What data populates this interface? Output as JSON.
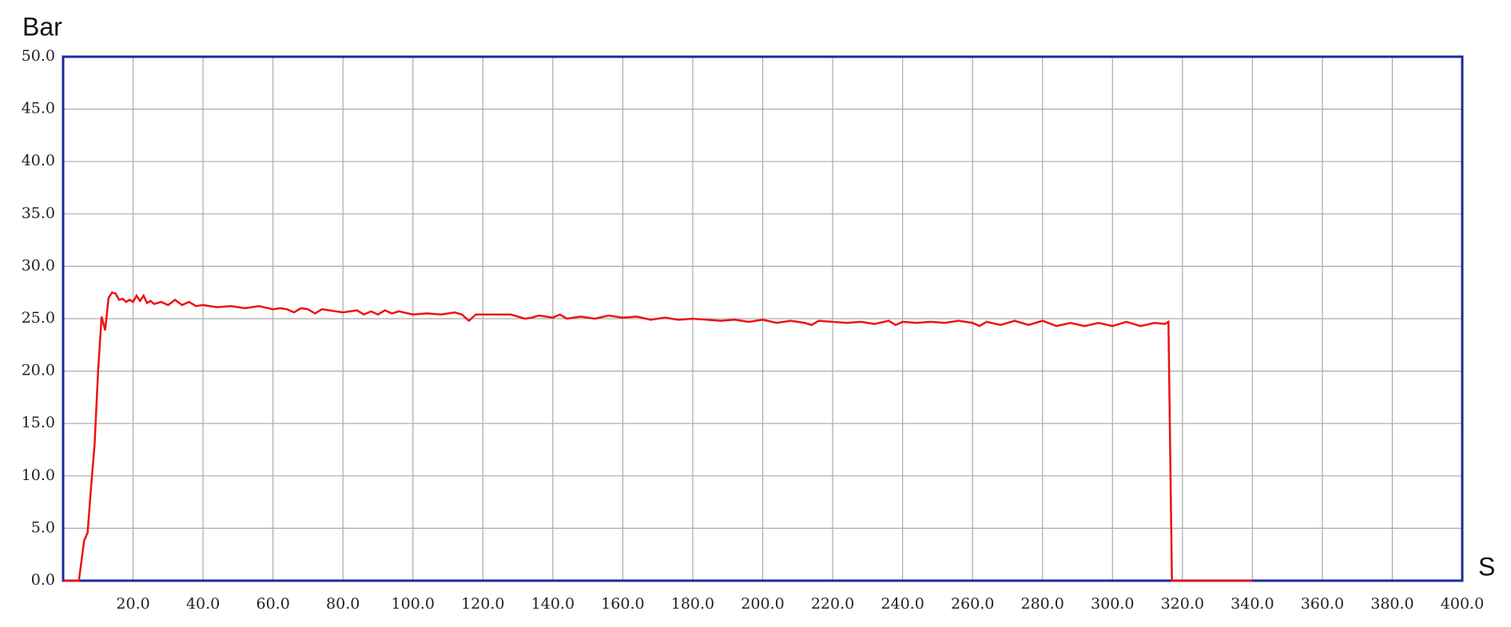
{
  "chart_data": {
    "type": "line",
    "y_axis_label": "Bar",
    "x_axis_label": "S",
    "xlim": [
      0,
      400
    ],
    "ylim": [
      0,
      50
    ],
    "grid": true,
    "xticks": [
      {
        "value": 20,
        "label": "20.0"
      },
      {
        "value": 40,
        "label": "40.0"
      },
      {
        "value": 60,
        "label": "60.0"
      },
      {
        "value": 80,
        "label": "80.0"
      },
      {
        "value": 100,
        "label": "100.0"
      },
      {
        "value": 120,
        "label": "120.0"
      },
      {
        "value": 140,
        "label": "140.0"
      },
      {
        "value": 160,
        "label": "160.0"
      },
      {
        "value": 180,
        "label": "180.0"
      },
      {
        "value": 200,
        "label": "200.0"
      },
      {
        "value": 220,
        "label": "220.0"
      },
      {
        "value": 240,
        "label": "240.0"
      },
      {
        "value": 260,
        "label": "260.0"
      },
      {
        "value": 280,
        "label": "280.0"
      },
      {
        "value": 300,
        "label": "300.0"
      },
      {
        "value": 320,
        "label": "320.0"
      },
      {
        "value": 340,
        "label": "340.0"
      },
      {
        "value": 360,
        "label": "360.0"
      },
      {
        "value": 380,
        "label": "380.0"
      },
      {
        "value": 400,
        "label": "400.0"
      }
    ],
    "yticks": [
      {
        "value": 0,
        "label": "0.0"
      },
      {
        "value": 5,
        "label": "5.0"
      },
      {
        "value": 10,
        "label": "10.0"
      },
      {
        "value": 15,
        "label": "15.0"
      },
      {
        "value": 20,
        "label": "20.0"
      },
      {
        "value": 25,
        "label": "25.0"
      },
      {
        "value": 30,
        "label": "30.0"
      },
      {
        "value": 35,
        "label": "35.0"
      },
      {
        "value": 40,
        "label": "40.0"
      },
      {
        "value": 45,
        "label": "45.0"
      },
      {
        "value": 50,
        "label": "50.0"
      }
    ],
    "x": [
      0,
      4.5,
      6,
      7,
      8,
      9,
      10,
      11,
      12,
      13,
      14,
      15,
      16,
      17,
      18,
      19,
      20,
      21,
      22,
      23,
      24,
      25,
      26,
      28,
      30,
      32,
      34,
      36,
      38,
      40,
      44,
      48,
      52,
      56,
      60,
      62,
      64,
      66,
      68,
      70,
      72,
      74,
      76,
      80,
      84,
      86,
      88,
      90,
      92,
      94,
      96,
      100,
      104,
      108,
      112,
      114,
      116,
      118,
      120,
      124,
      128,
      132,
      134,
      136,
      140,
      142,
      144,
      148,
      152,
      156,
      160,
      164,
      168,
      172,
      176,
      180,
      184,
      188,
      192,
      196,
      200,
      204,
      208,
      212,
      214,
      216,
      220,
      224,
      228,
      232,
      236,
      238,
      240,
      244,
      248,
      252,
      256,
      260,
      262,
      264,
      268,
      272,
      276,
      280,
      284,
      288,
      292,
      296,
      300,
      304,
      308,
      312,
      315,
      316,
      317,
      340
    ],
    "series": [
      {
        "color": "#ee1111",
        "values": [
          0,
          0,
          3.8,
          4.6,
          9,
          13,
          20,
          25.2,
          23.9,
          27,
          27.5,
          27.4,
          26.8,
          26.9,
          26.6,
          26.8,
          26.6,
          27.2,
          26.7,
          27.2,
          26.5,
          26.7,
          26.4,
          26.6,
          26.3,
          26.8,
          26.3,
          26.6,
          26.2,
          26.3,
          26.1,
          26.2,
          26.0,
          26.2,
          25.9,
          26.0,
          25.9,
          25.6,
          26.0,
          25.9,
          25.5,
          25.9,
          25.8,
          25.6,
          25.8,
          25.4,
          25.7,
          25.4,
          25.8,
          25.5,
          25.7,
          25.4,
          25.5,
          25.4,
          25.6,
          25.4,
          24.8,
          25.4,
          25.4,
          25.4,
          25.4,
          25.0,
          25.1,
          25.3,
          25.1,
          25.4,
          25.0,
          25.2,
          25.0,
          25.3,
          25.1,
          25.2,
          24.9,
          25.1,
          24.9,
          25.0,
          24.9,
          24.8,
          24.9,
          24.7,
          24.9,
          24.6,
          24.8,
          24.6,
          24.4,
          24.8,
          24.7,
          24.6,
          24.7,
          24.5,
          24.8,
          24.4,
          24.7,
          24.6,
          24.7,
          24.6,
          24.8,
          24.6,
          24.3,
          24.7,
          24.4,
          24.8,
          24.4,
          24.8,
          24.3,
          24.6,
          24.3,
          24.6,
          24.3,
          24.7,
          24.3,
          24.6,
          24.5,
          24.7,
          0,
          0
        ]
      }
    ]
  }
}
